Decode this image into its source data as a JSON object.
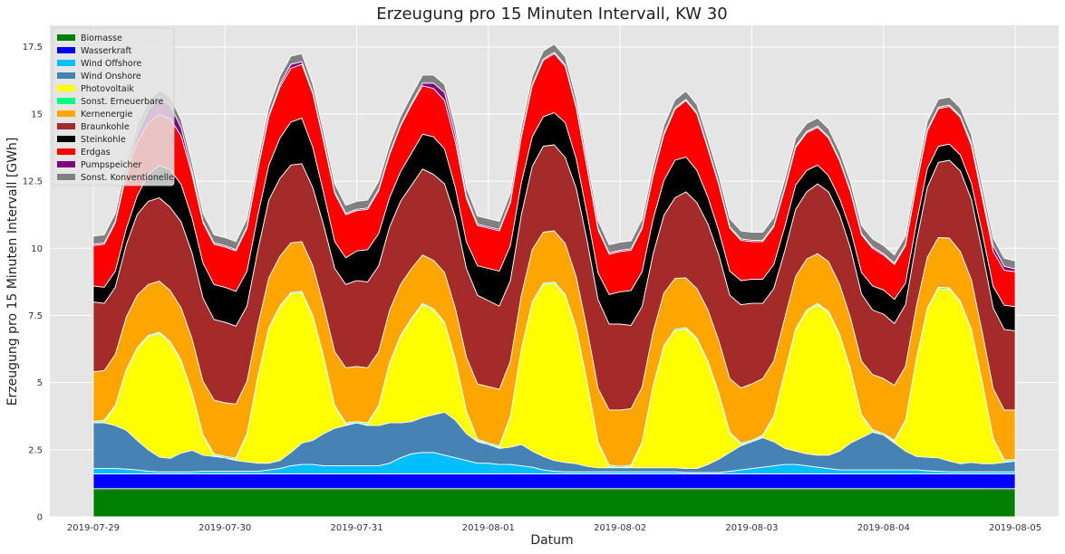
{
  "chart_data": {
    "type": "area",
    "stacked": true,
    "title": "Erzeugung pro 15 Minuten Intervall, KW 30",
    "xlabel": "Datum",
    "ylabel": "Erzeugung pro 15 Minuten Intervall [GWh]",
    "x_range": [
      -0.33,
      7.33
    ],
    "ylim": [
      0,
      18.3
    ],
    "grid": true,
    "legend_position": "top-left",
    "x_ticks": [
      {
        "value": 0,
        "label": "2019-07-29"
      },
      {
        "value": 1,
        "label": "2019-07-30"
      },
      {
        "value": 2,
        "label": "2019-07-31"
      },
      {
        "value": 3,
        "label": "2019-08-01"
      },
      {
        "value": 4,
        "label": "2019-08-02"
      },
      {
        "value": 5,
        "label": "2019-08-03"
      },
      {
        "value": 6,
        "label": "2019-08-04"
      },
      {
        "value": 7,
        "label": "2019-08-05"
      }
    ],
    "y_ticks": [
      {
        "value": 0,
        "label": "0"
      },
      {
        "value": 2.5,
        "label": "2.5"
      },
      {
        "value": 5,
        "label": "5"
      },
      {
        "value": 7.5,
        "label": "7.5"
      },
      {
        "value": 10,
        "label": "10"
      },
      {
        "value": 12.5,
        "label": "12.5"
      },
      {
        "value": 15,
        "label": "15"
      },
      {
        "value": 17.5,
        "label": "17.5"
      }
    ],
    "x": [
      0,
      0.083,
      0.167,
      0.25,
      0.333,
      0.417,
      0.5,
      0.583,
      0.667,
      0.75,
      0.833,
      0.917,
      1,
      1.083,
      1.167,
      1.25,
      1.333,
      1.417,
      1.5,
      1.583,
      1.667,
      1.75,
      1.833,
      1.917,
      2,
      2.083,
      2.167,
      2.25,
      2.333,
      2.417,
      2.5,
      2.583,
      2.667,
      2.75,
      2.833,
      2.917,
      3,
      3.083,
      3.167,
      3.25,
      3.333,
      3.417,
      3.5,
      3.583,
      3.667,
      3.75,
      3.833,
      3.917,
      4,
      4.083,
      4.167,
      4.25,
      4.333,
      4.417,
      4.5,
      4.583,
      4.667,
      4.75,
      4.833,
      4.917,
      5,
      5.083,
      5.167,
      5.25,
      5.333,
      5.417,
      5.5,
      5.583,
      5.667,
      5.75,
      5.833,
      5.917,
      6,
      6.083,
      6.167,
      6.25,
      6.333,
      6.417,
      6.5,
      6.583,
      6.667,
      6.75,
      6.833,
      6.917,
      7
    ],
    "series": [
      {
        "name": "Biomasse",
        "color": "#008000",
        "values": [
          1.05,
          1.05,
          1.05,
          1.05,
          1.05,
          1.05,
          1.05,
          1.05,
          1.05,
          1.05,
          1.05,
          1.05,
          1.05,
          1.05,
          1.05,
          1.05,
          1.05,
          1.05,
          1.05,
          1.05,
          1.05,
          1.05,
          1.05,
          1.05,
          1.05,
          1.05,
          1.05,
          1.05,
          1.05,
          1.05,
          1.05,
          1.05,
          1.05,
          1.05,
          1.05,
          1.05,
          1.05,
          1.05,
          1.05,
          1.05,
          1.05,
          1.05,
          1.05,
          1.05,
          1.05,
          1.05,
          1.05,
          1.05,
          1.05,
          1.05,
          1.05,
          1.05,
          1.05,
          1.05,
          1.05,
          1.05,
          1.05,
          1.05,
          1.05,
          1.05,
          1.05,
          1.05,
          1.05,
          1.05,
          1.05,
          1.05,
          1.05,
          1.05,
          1.05,
          1.05,
          1.05,
          1.05,
          1.05,
          1.05,
          1.05,
          1.05,
          1.05,
          1.05,
          1.05,
          1.05,
          1.05,
          1.05,
          1.05,
          1.05,
          1.05
        ]
      },
      {
        "name": "Wasserkraft",
        "color": "#0000ff",
        "values": [
          0.55,
          0.55,
          0.55,
          0.55,
          0.55,
          0.55,
          0.55,
          0.55,
          0.55,
          0.55,
          0.55,
          0.55,
          0.55,
          0.55,
          0.55,
          0.55,
          0.55,
          0.55,
          0.55,
          0.55,
          0.55,
          0.55,
          0.55,
          0.55,
          0.55,
          0.55,
          0.55,
          0.55,
          0.55,
          0.55,
          0.55,
          0.55,
          0.55,
          0.55,
          0.55,
          0.55,
          0.55,
          0.55,
          0.55,
          0.55,
          0.55,
          0.55,
          0.55,
          0.55,
          0.55,
          0.55,
          0.55,
          0.55,
          0.55,
          0.55,
          0.55,
          0.55,
          0.55,
          0.55,
          0.55,
          0.55,
          0.55,
          0.55,
          0.55,
          0.55,
          0.55,
          0.55,
          0.55,
          0.55,
          0.55,
          0.55,
          0.55,
          0.55,
          0.55,
          0.55,
          0.55,
          0.55,
          0.55,
          0.55,
          0.55,
          0.55,
          0.55,
          0.55,
          0.55,
          0.55,
          0.55,
          0.55,
          0.55,
          0.55,
          0.55
        ]
      },
      {
        "name": "Wind Offshore",
        "color": "#00bfff",
        "values": [
          0.2,
          0.2,
          0.2,
          0.18,
          0.15,
          0.1,
          0.08,
          0.08,
          0.08,
          0.08,
          0.1,
          0.1,
          0.1,
          0.1,
          0.1,
          0.1,
          0.15,
          0.2,
          0.3,
          0.35,
          0.35,
          0.3,
          0.3,
          0.3,
          0.3,
          0.3,
          0.3,
          0.4,
          0.6,
          0.75,
          0.8,
          0.8,
          0.7,
          0.6,
          0.5,
          0.4,
          0.4,
          0.35,
          0.35,
          0.3,
          0.25,
          0.15,
          0.1,
          0.08,
          0.08,
          0.08,
          0.08,
          0.08,
          0.08,
          0.08,
          0.08,
          0.08,
          0.08,
          0.08,
          0.05,
          0.05,
          0.05,
          0.05,
          0.1,
          0.15,
          0.2,
          0.25,
          0.3,
          0.35,
          0.35,
          0.3,
          0.25,
          0.2,
          0.15,
          0.15,
          0.15,
          0.15,
          0.15,
          0.15,
          0.15,
          0.15,
          0.12,
          0.1,
          0.08,
          0.08,
          0.08,
          0.08,
          0.08,
          0.08,
          0.08
        ]
      },
      {
        "name": "Wind Onshore",
        "color": "#4682b4",
        "values": [
          1.7,
          1.7,
          1.6,
          1.45,
          1.1,
          0.8,
          0.55,
          0.5,
          0.7,
          0.8,
          0.6,
          0.55,
          0.5,
          0.4,
          0.35,
          0.3,
          0.25,
          0.3,
          0.5,
          0.8,
          0.9,
          1.2,
          1.4,
          1.5,
          1.6,
          1.5,
          1.5,
          1.5,
          1.3,
          1.2,
          1.3,
          1.4,
          1.6,
          1.4,
          1.0,
          0.8,
          0.7,
          0.6,
          0.65,
          0.8,
          0.6,
          0.5,
          0.4,
          0.35,
          0.3,
          0.2,
          0.15,
          0.15,
          0.15,
          0.15,
          0.15,
          0.15,
          0.15,
          0.15,
          0.15,
          0.15,
          0.3,
          0.5,
          0.7,
          0.9,
          1.0,
          1.1,
          0.9,
          0.6,
          0.5,
          0.45,
          0.45,
          0.5,
          0.7,
          1.0,
          1.2,
          1.4,
          1.3,
          1.0,
          0.7,
          0.5,
          0.5,
          0.5,
          0.4,
          0.3,
          0.35,
          0.3,
          0.3,
          0.35,
          0.4
        ]
      },
      {
        "name": "Photovoltaik",
        "color": "#ffff00",
        "values": [
          0.0,
          0.05,
          0.7,
          2.2,
          3.4,
          4.2,
          4.6,
          4.3,
          3.4,
          2.1,
          0.7,
          0.05,
          0.0,
          0.05,
          1.0,
          3.2,
          5.0,
          5.7,
          5.9,
          5.6,
          4.6,
          2.8,
          0.8,
          0.05,
          0.0,
          0.05,
          0.7,
          2.2,
          3.2,
          3.8,
          4.2,
          3.9,
          3.3,
          2.2,
          0.8,
          0.05,
          0.0,
          0.05,
          1.1,
          3.5,
          5.5,
          6.4,
          6.6,
          6.2,
          5.0,
          3.1,
          0.9,
          0.05,
          0.0,
          0.05,
          0.9,
          3.0,
          4.5,
          5.1,
          5.2,
          4.8,
          3.8,
          2.4,
          0.7,
          0.05,
          0.0,
          0.05,
          0.9,
          2.8,
          4.5,
          5.3,
          5.6,
          5.3,
          4.3,
          2.7,
          0.8,
          0.05,
          0.0,
          0.05,
          1.1,
          3.6,
          5.5,
          6.3,
          6.4,
          6.0,
          4.9,
          3.0,
          0.9,
          0.05,
          0.0
        ]
      },
      {
        "name": "Sonst. Erneuerbare",
        "color": "#00ff7f",
        "values": [
          0.05,
          0.05,
          0.05,
          0.05,
          0.05,
          0.05,
          0.05,
          0.05,
          0.05,
          0.05,
          0.05,
          0.05,
          0.05,
          0.05,
          0.05,
          0.05,
          0.05,
          0.05,
          0.05,
          0.05,
          0.05,
          0.05,
          0.05,
          0.05,
          0.05,
          0.05,
          0.05,
          0.05,
          0.05,
          0.05,
          0.05,
          0.05,
          0.05,
          0.05,
          0.05,
          0.05,
          0.05,
          0.05,
          0.05,
          0.05,
          0.05,
          0.05,
          0.05,
          0.05,
          0.05,
          0.05,
          0.05,
          0.05,
          0.05,
          0.05,
          0.05,
          0.05,
          0.05,
          0.05,
          0.05,
          0.05,
          0.05,
          0.05,
          0.05,
          0.05,
          0.05,
          0.05,
          0.05,
          0.05,
          0.05,
          0.05,
          0.05,
          0.05,
          0.05,
          0.05,
          0.05,
          0.05,
          0.05,
          0.05,
          0.05,
          0.05,
          0.05,
          0.05,
          0.05,
          0.05,
          0.05,
          0.05,
          0.05,
          0.05,
          0.05
        ]
      },
      {
        "name": "Kernenergie",
        "color": "#ffa500",
        "values": [
          1.85,
          1.85,
          1.9,
          1.95,
          1.95,
          1.9,
          1.9,
          1.9,
          1.95,
          2.0,
          2.0,
          2.0,
          2.0,
          2.0,
          1.95,
          1.9,
          1.85,
          1.85,
          1.85,
          1.85,
          1.85,
          1.9,
          2.0,
          2.05,
          2.05,
          2.05,
          2.0,
          1.95,
          1.9,
          1.85,
          1.8,
          1.8,
          1.85,
          1.9,
          2.0,
          2.05,
          2.1,
          2.1,
          2.05,
          2.0,
          1.95,
          1.9,
          1.9,
          1.9,
          1.9,
          1.95,
          2.0,
          2.05,
          2.1,
          2.1,
          2.05,
          2.0,
          1.95,
          1.9,
          1.85,
          1.85,
          1.9,
          1.95,
          2.0,
          2.05,
          2.1,
          2.1,
          2.05,
          2.0,
          1.95,
          1.9,
          1.85,
          1.85,
          1.85,
          1.9,
          2.0,
          2.05,
          2.05,
          2.05,
          2.0,
          1.95,
          1.9,
          1.85,
          1.85,
          1.85,
          1.85,
          1.85,
          1.85,
          1.85,
          1.85
        ]
      },
      {
        "name": "Braunkohle",
        "color": "#a52a2a",
        "values": [
          2.6,
          2.5,
          2.5,
          2.7,
          3.0,
          3.1,
          3.1,
          3.1,
          3.2,
          3.2,
          3.1,
          3.0,
          3.0,
          2.9,
          2.8,
          2.8,
          2.9,
          2.9,
          2.9,
          2.9,
          2.9,
          3.0,
          3.1,
          3.1,
          3.2,
          3.2,
          3.2,
          3.1,
          3.1,
          3.1,
          3.2,
          3.2,
          3.3,
          3.4,
          3.3,
          3.3,
          3.2,
          3.1,
          3.0,
          3.0,
          3.1,
          3.2,
          3.2,
          3.2,
          3.3,
          3.3,
          3.3,
          3.2,
          3.2,
          3.1,
          3.0,
          2.9,
          2.9,
          3.0,
          3.2,
          3.2,
          3.2,
          3.2,
          3.1,
          3.1,
          3.0,
          2.8,
          2.7,
          2.5,
          2.5,
          2.5,
          2.6,
          2.6,
          2.6,
          2.6,
          2.5,
          2.4,
          2.4,
          2.3,
          2.3,
          2.4,
          2.6,
          2.8,
          2.9,
          3.0,
          3.0,
          3.0,
          3.0,
          3.0,
          2.95
        ]
      },
      {
        "name": "Steinkohle",
        "color": "#000000",
        "values": [
          0.6,
          0.6,
          0.6,
          0.6,
          0.7,
          1.0,
          1.2,
          1.4,
          1.4,
          1.3,
          1.3,
          1.3,
          1.3,
          1.3,
          1.3,
          1.3,
          1.3,
          1.5,
          1.6,
          1.7,
          1.5,
          1.2,
          1.0,
          1.0,
          1.1,
          1.2,
          1.2,
          1.1,
          1.1,
          1.2,
          1.3,
          1.4,
          1.3,
          1.1,
          1.0,
          1.1,
          1.2,
          1.3,
          1.3,
          1.2,
          1.1,
          1.1,
          1.2,
          1.3,
          1.1,
          1.0,
          1.0,
          1.1,
          1.2,
          1.3,
          1.3,
          1.3,
          1.3,
          1.4,
          1.3,
          1.2,
          1.0,
          0.9,
          0.9,
          0.9,
          0.9,
          0.9,
          0.9,
          0.9,
          0.9,
          0.8,
          0.7,
          0.6,
          0.6,
          0.7,
          0.8,
          0.9,
          0.9,
          0.9,
          0.8,
          0.7,
          0.7,
          0.6,
          0.6,
          0.6,
          0.6,
          0.7,
          0.8,
          0.9,
          0.9
        ]
      },
      {
        "name": "Erdgas",
        "color": "#ff0000",
        "values": [
          1.5,
          1.6,
          1.8,
          2.0,
          2.0,
          1.9,
          1.9,
          1.9,
          1.8,
          1.6,
          1.5,
          1.5,
          1.5,
          1.5,
          1.6,
          1.7,
          1.8,
          1.9,
          2.0,
          2.0,
          2.0,
          1.9,
          1.8,
          1.6,
          1.5,
          1.5,
          1.6,
          1.6,
          1.7,
          1.8,
          1.8,
          1.8,
          1.8,
          1.7,
          1.6,
          1.5,
          1.5,
          1.5,
          1.6,
          1.7,
          1.9,
          2.1,
          2.2,
          2.1,
          1.9,
          1.7,
          1.6,
          1.5,
          1.5,
          1.5,
          1.6,
          1.6,
          1.7,
          1.9,
          2.1,
          2.1,
          1.8,
          1.7,
          1.6,
          1.5,
          1.4,
          1.4,
          1.4,
          1.4,
          1.4,
          1.4,
          1.4,
          1.4,
          1.4,
          1.4,
          1.4,
          1.4,
          1.3,
          1.3,
          1.4,
          1.4,
          1.4,
          1.4,
          1.4,
          1.4,
          1.4,
          1.3,
          1.3,
          1.3,
          1.3
        ]
      },
      {
        "name": "Pumpspeicher",
        "color": "#800080",
        "values": [
          0.05,
          0.05,
          0.05,
          0.1,
          0.3,
          0.5,
          0.6,
          0.5,
          0.3,
          0.15,
          0.05,
          0.05,
          0.05,
          0.05,
          0.05,
          0.05,
          0.05,
          0.1,
          0.15,
          0.1,
          0.05,
          0.05,
          0.05,
          0.05,
          0.05,
          0.05,
          0.05,
          0.05,
          0.05,
          0.05,
          0.1,
          0.2,
          0.3,
          0.25,
          0.1,
          0.05,
          0.05,
          0.05,
          0.05,
          0.05,
          0.05,
          0.05,
          0.05,
          0.05,
          0.05,
          0.05,
          0.05,
          0.05,
          0.05,
          0.05,
          0.05,
          0.05,
          0.05,
          0.05,
          0.05,
          0.05,
          0.05,
          0.05,
          0.05,
          0.05,
          0.05,
          0.05,
          0.05,
          0.05,
          0.05,
          0.05,
          0.05,
          0.05,
          0.05,
          0.05,
          0.05,
          0.05,
          0.05,
          0.05,
          0.05,
          0.05,
          0.05,
          0.05,
          0.05,
          0.05,
          0.1,
          0.15,
          0.2,
          0.15,
          0.1
        ]
      },
      {
        "name": "Sonst. Konventionelle",
        "color": "#808080",
        "values": [
          0.3,
          0.3,
          0.3,
          0.3,
          0.3,
          0.3,
          0.3,
          0.3,
          0.3,
          0.3,
          0.3,
          0.3,
          0.3,
          0.3,
          0.3,
          0.3,
          0.3,
          0.3,
          0.3,
          0.3,
          0.3,
          0.3,
          0.3,
          0.3,
          0.3,
          0.3,
          0.3,
          0.3,
          0.3,
          0.3,
          0.3,
          0.3,
          0.3,
          0.3,
          0.3,
          0.3,
          0.3,
          0.3,
          0.3,
          0.3,
          0.3,
          0.3,
          0.3,
          0.3,
          0.3,
          0.3,
          0.3,
          0.3,
          0.3,
          0.3,
          0.3,
          0.3,
          0.3,
          0.3,
          0.3,
          0.3,
          0.3,
          0.3,
          0.3,
          0.3,
          0.3,
          0.3,
          0.3,
          0.3,
          0.3,
          0.3,
          0.3,
          0.3,
          0.3,
          0.3,
          0.3,
          0.3,
          0.3,
          0.3,
          0.3,
          0.3,
          0.3,
          0.3,
          0.3,
          0.3,
          0.3,
          0.3,
          0.3,
          0.3,
          0.3
        ]
      }
    ]
  }
}
